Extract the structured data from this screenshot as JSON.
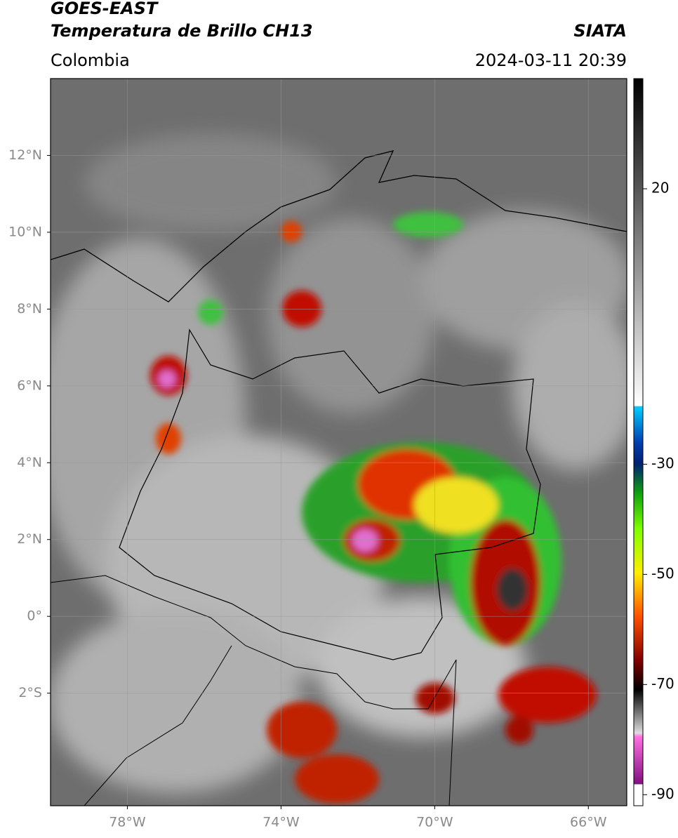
{
  "header": {
    "satellite": "GOES-EAST",
    "product": "Temperatura de Brillo CH13",
    "region": "Colombia",
    "agency": "SIATA",
    "timestamp": "2024-03-11 20:39"
  },
  "map": {
    "xlim": [
      -80,
      -65
    ],
    "ylim": [
      -4.93,
      14
    ],
    "xticks": [
      {
        "value": -78,
        "label": "78°W"
      },
      {
        "value": -74,
        "label": "74°W"
      },
      {
        "value": -70,
        "label": "70°W"
      },
      {
        "value": -66,
        "label": "66°W"
      }
    ],
    "yticks": [
      {
        "value": 12,
        "label": "12°N"
      },
      {
        "value": 10,
        "label": "10°N"
      },
      {
        "value": 8,
        "label": "8°N"
      },
      {
        "value": 6,
        "label": "6°N"
      },
      {
        "value": 4,
        "label": "4°N"
      },
      {
        "value": 2,
        "label": "2°N"
      },
      {
        "value": 0,
        "label": "0°"
      },
      {
        "value": -2,
        "label": "2°S"
      }
    ],
    "grid": true
  },
  "colorbar": {
    "lim": [
      -92,
      40
    ],
    "ticks": [
      20,
      -30,
      -50,
      -70,
      -90
    ]
  }
}
